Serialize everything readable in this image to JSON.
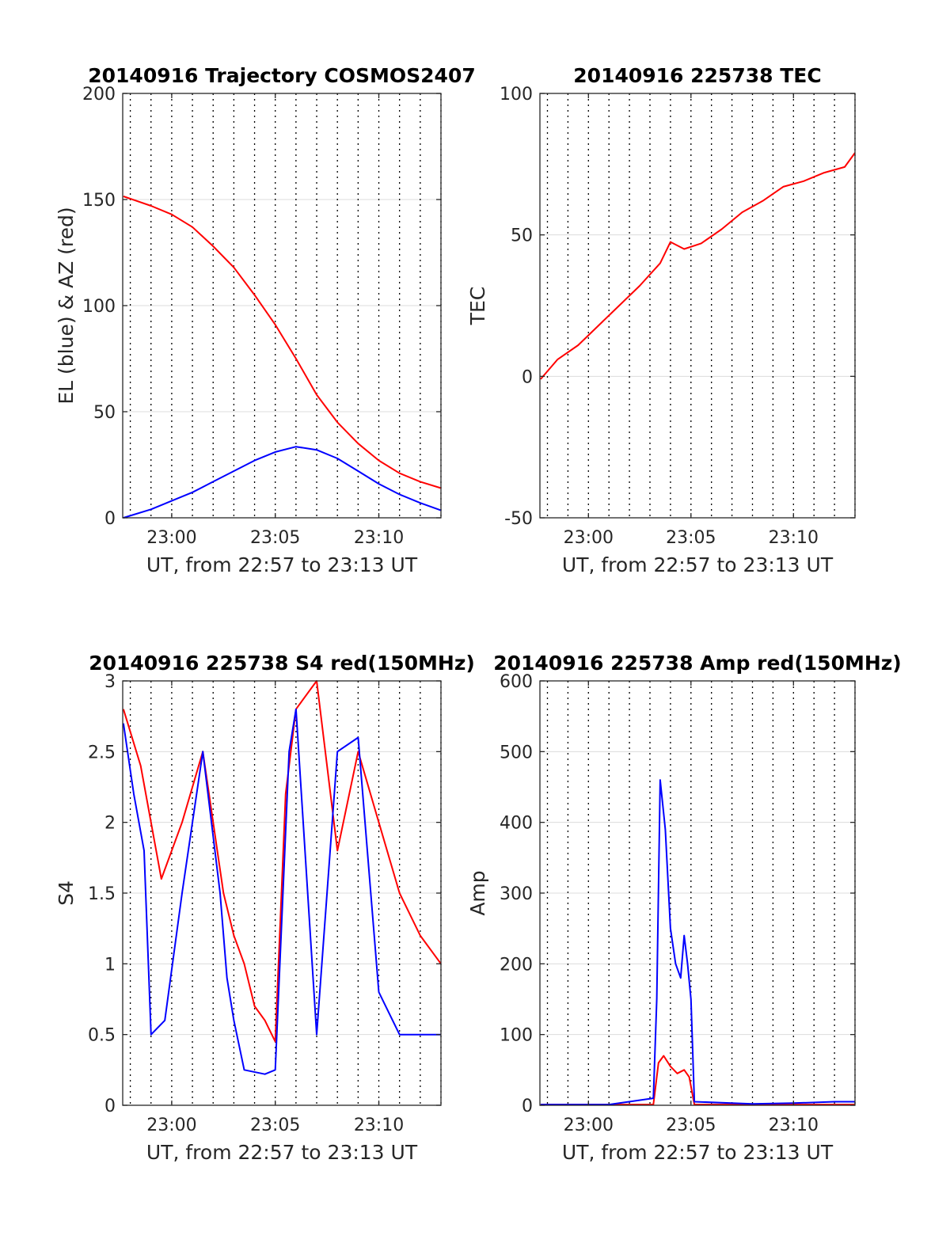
{
  "chart_data": [
    {
      "type": "line",
      "title": "20140916 Trajectory COSMOS2407",
      "xlabel": "UT, from 22:57 to 23:13 UT",
      "ylabel": "EL (blue) & AZ (red)",
      "xlim": [
        "22:57:38",
        "23:13:00"
      ],
      "ylim": [
        0,
        200
      ],
      "xticks": [
        {
          "value": "23:00",
          "label": "23:00"
        },
        {
          "value": "23:05",
          "label": "23:05"
        },
        {
          "value": "23:10",
          "label": "23:10"
        }
      ],
      "yticks": [
        {
          "value": 0,
          "label": "0"
        },
        {
          "value": 50,
          "label": "50"
        },
        {
          "value": 100,
          "label": "100"
        },
        {
          "value": 150,
          "label": "150"
        },
        {
          "value": 200,
          "label": "200"
        }
      ],
      "grid": "horizontal solid at y ticks, vertical dotted every minute",
      "series": [
        {
          "color": "#ff0000",
          "x": [
            "22:57:40",
            "22:59:00",
            "23:00:00",
            "23:01:00",
            "23:02:00",
            "23:03:00",
            "23:04:00",
            "23:05:00",
            "23:06:00",
            "23:07:00",
            "23:08:00",
            "23:09:00",
            "23:10:00",
            "23:11:00",
            "23:12:00",
            "23:13:00"
          ],
          "y": [
            151.5,
            147,
            143,
            137,
            128,
            118,
            105,
            91,
            75,
            58,
            45,
            35,
            27,
            21,
            17,
            14
          ]
        },
        {
          "color": "#0000ff",
          "x": [
            "22:57:40",
            "22:59:00",
            "23:00:00",
            "23:01:00",
            "23:02:00",
            "23:03:00",
            "23:04:00",
            "23:05:00",
            "23:06:00",
            "23:07:00",
            "23:08:00",
            "23:09:00",
            "23:10:00",
            "23:11:00",
            "23:12:00",
            "23:13:00"
          ],
          "y": [
            0,
            4,
            8,
            12,
            17,
            22,
            27,
            31,
            33.5,
            32,
            28,
            22,
            16,
            11,
            7,
            3.5
          ]
        }
      ]
    },
    {
      "type": "line",
      "title": "20140916 225738 TEC",
      "xlabel": "UT, from 22:57 to 23:13 UT",
      "ylabel": "TEC",
      "xlim": [
        "22:57:38",
        "23:13:00"
      ],
      "ylim": [
        -50,
        100
      ],
      "xticks": [
        {
          "value": "23:00",
          "label": "23:00"
        },
        {
          "value": "23:05",
          "label": "23:05"
        },
        {
          "value": "23:10",
          "label": "23:10"
        }
      ],
      "yticks": [
        {
          "value": -50,
          "label": "-50"
        },
        {
          "value": 0,
          "label": "0"
        },
        {
          "value": 50,
          "label": "50"
        },
        {
          "value": 100,
          "label": "100"
        }
      ],
      "grid": "horizontal solid at y ticks, vertical dotted every minute",
      "series": [
        {
          "color": "#ff0000",
          "x": [
            "22:57:40",
            "22:58:30",
            "22:59:30",
            "23:00:30",
            "23:01:30",
            "23:02:30",
            "23:03:30",
            "23:04:00",
            "23:04:40",
            "23:05:30",
            "23:06:30",
            "23:07:30",
            "23:08:30",
            "23:09:30",
            "23:10:30",
            "23:11:30",
            "23:12:30",
            "23:13:00"
          ],
          "y": [
            -1,
            6,
            11,
            18,
            25,
            32,
            40,
            47.5,
            45,
            47,
            52,
            58,
            62,
            67,
            69,
            72,
            74,
            79
          ]
        }
      ]
    },
    {
      "type": "line",
      "title": "20140916 225738 S4 red(150MHz)",
      "xlabel": "UT, from 22:57 to 23:13 UT",
      "ylabel": "S4",
      "xlim": [
        "22:57:38",
        "23:13:00"
      ],
      "ylim": [
        0,
        3
      ],
      "xticks": [
        {
          "value": "23:00",
          "label": "23:00"
        },
        {
          "value": "23:05",
          "label": "23:05"
        },
        {
          "value": "23:10",
          "label": "23:10"
        }
      ],
      "yticks": [
        {
          "value": 0,
          "label": "0"
        },
        {
          "value": 0.5,
          "label": "0.5"
        },
        {
          "value": 1,
          "label": "1"
        },
        {
          "value": 1.5,
          "label": "1.5"
        },
        {
          "value": 2,
          "label": "2"
        },
        {
          "value": 2.5,
          "label": "2.5"
        },
        {
          "value": 3,
          "label": "3"
        }
      ],
      "grid": "horizontal solid at y ticks, vertical dotted every minute",
      "series": [
        {
          "color": "#ff0000",
          "x": [
            "22:57:40",
            "22:58:30",
            "22:59:30",
            "23:00:30",
            "23:01:30",
            "23:02:30",
            "23:03:00",
            "23:03:30",
            "23:04:00",
            "23:04:30",
            "23:05:00",
            "23:05:30",
            "23:06:00",
            "23:07:00",
            "23:08:00",
            "23:09:00",
            "23:10:00",
            "23:11:00",
            "23:12:00",
            "23:13:00"
          ],
          "y": [
            2.8,
            2.4,
            1.6,
            2.0,
            2.5,
            1.5,
            1.2,
            1.0,
            0.7,
            0.6,
            0.45,
            2.2,
            2.8,
            3.0,
            1.8,
            2.5,
            2.0,
            1.5,
            1.2,
            1.0
          ]
        },
        {
          "color": "#0000ff",
          "x": [
            "22:57:40",
            "22:58:10",
            "22:58:40",
            "22:59:00",
            "22:59:40",
            "23:00:30",
            "23:01:30",
            "23:02:20",
            "23:02:40",
            "23:03:00",
            "23:03:30",
            "23:04:30",
            "23:05:00",
            "23:05:40",
            "23:06:00",
            "23:07:00",
            "23:08:00",
            "23:09:00",
            "23:10:00",
            "23:11:00",
            "23:12:00",
            "23:13:00"
          ],
          "y": [
            2.7,
            2.2,
            1.8,
            0.5,
            0.6,
            1.5,
            2.5,
            1.5,
            0.9,
            0.6,
            0.25,
            0.22,
            0.25,
            2.5,
            2.8,
            0.5,
            2.5,
            2.6,
            0.8,
            0.5,
            0.5,
            0.5
          ]
        }
      ]
    },
    {
      "type": "line",
      "title": "20140916 225738 Amp red(150MHz)",
      "xlabel": "UT, from 22:57 to 23:13 UT",
      "ylabel": "Amp",
      "xlim": [
        "22:57:38",
        "23:13:00"
      ],
      "ylim": [
        0,
        600
      ],
      "xticks": [
        {
          "value": "23:00",
          "label": "23:00"
        },
        {
          "value": "23:05",
          "label": "23:05"
        },
        {
          "value": "23:10",
          "label": "23:10"
        }
      ],
      "yticks": [
        {
          "value": 0,
          "label": "0"
        },
        {
          "value": 100,
          "label": "100"
        },
        {
          "value": 200,
          "label": "200"
        },
        {
          "value": 300,
          "label": "300"
        },
        {
          "value": 400,
          "label": "400"
        },
        {
          "value": 500,
          "label": "500"
        },
        {
          "value": 600,
          "label": "600"
        }
      ],
      "grid": "horizontal solid at y ticks, vertical dotted every minute",
      "series": [
        {
          "color": "#ff0000",
          "x": [
            "22:57:40",
            "23:03:10",
            "23:03:25",
            "23:03:40",
            "23:04:00",
            "23:04:20",
            "23:04:40",
            "23:04:55",
            "23:05:10",
            "23:13:00"
          ],
          "y": [
            1,
            1,
            60,
            70,
            55,
            45,
            50,
            40,
            1,
            1
          ]
        },
        {
          "color": "#0000ff",
          "x": [
            "22:57:40",
            "23:01:00",
            "23:03:10",
            "23:03:20",
            "23:03:30",
            "23:03:45",
            "23:04:00",
            "23:04:15",
            "23:04:30",
            "23:04:40",
            "23:04:50",
            "23:05:00",
            "23:05:10",
            "23:08:00",
            "23:10:00",
            "23:12:00",
            "23:13:00"
          ],
          "y": [
            1,
            1,
            10,
            150,
            460,
            390,
            250,
            200,
            180,
            240,
            200,
            150,
            5,
            2,
            3,
            5,
            5
          ]
        }
      ]
    }
  ]
}
